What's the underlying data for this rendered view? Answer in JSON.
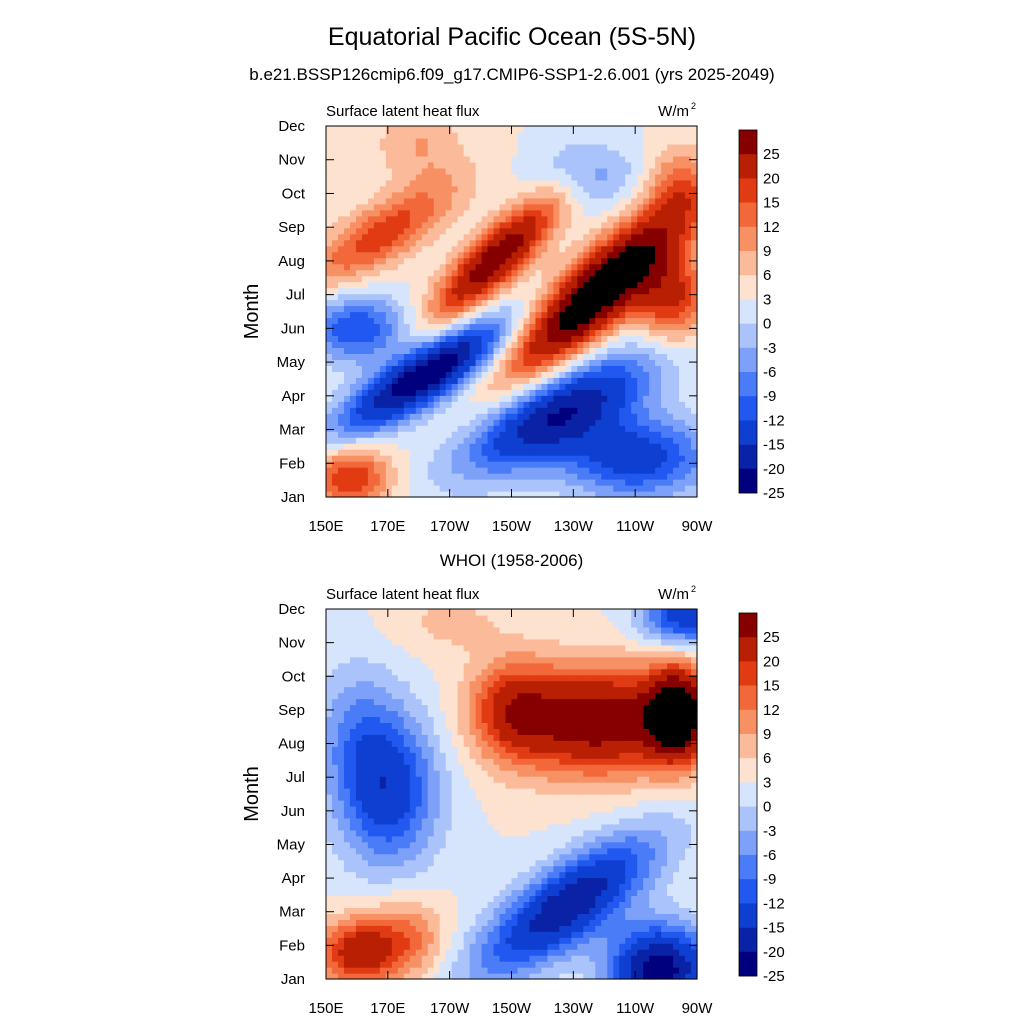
{
  "figure": {
    "title": "Equatorial Pacific Ocean (5S-5N)",
    "subtitle": "b.e21.BSSP126cmip6.f09_g17.CMIP6-SSP1-2.6.001 (yrs 2025-2049)"
  },
  "chart_data": [
    {
      "type": "heatmap",
      "panel_title": "",
      "left_string": "Surface latent heat flux",
      "right_string": "W/m",
      "right_string_sup": "2",
      "ylabel": "Month",
      "x_ticks": [
        "150E",
        "170E",
        "170W",
        "150W",
        "130W",
        "110W",
        "90W"
      ],
      "y_ticks": [
        "Jan",
        "Feb",
        "Mar",
        "Apr",
        "May",
        "Jun",
        "Jul",
        "Aug",
        "Sep",
        "Oct",
        "Nov",
        "Dec"
      ],
      "xlim": [
        150,
        270
      ],
      "levels": [
        -25,
        -20,
        -15,
        -12,
        -9,
        -6,
        -3,
        0,
        3,
        6,
        9,
        12,
        15,
        20,
        25
      ],
      "colorbar_labels": [
        "25",
        "20",
        "15",
        "12",
        "9",
        "6",
        "3",
        "0",
        "-3",
        "-6",
        "-9",
        "-12",
        "-15",
        "-20",
        "-25"
      ],
      "colors": [
        "#00007f",
        "#0a22a6",
        "#0f3fd1",
        "#2159f0",
        "#4a7cf7",
        "#7da1f8",
        "#aac3fa",
        "#d6e4fc",
        "#fde2d0",
        "#fbbb9a",
        "#f79063",
        "#f2683a",
        "#e03b12",
        "#b81f03",
        "#860000"
      ],
      "field_features": [
        {
          "lon": 238,
          "month": 7.1,
          "value": 32,
          "sx": 28,
          "sy": 1.3,
          "tilt": 0.075
        },
        {
          "lon": 205,
          "month": 8.1,
          "value": 24,
          "sx": 20,
          "sy": 1.0,
          "tilt": 0.075
        },
        {
          "lon": 168,
          "month": 8.8,
          "value": 14,
          "sx": 24,
          "sy": 1.0,
          "tilt": 0.05
        },
        {
          "lon": 262,
          "month": 6.9,
          "value": 16,
          "sx": 12,
          "sy": 1.3,
          "tilt": 0.0
        },
        {
          "lon": 182,
          "month": 4.6,
          "value": -30,
          "sx": 26,
          "sy": 0.9,
          "tilt": 0.05
        },
        {
          "lon": 225,
          "month": 3.5,
          "value": -24,
          "sx": 30,
          "sy": 1.2,
          "tilt": 0.04
        },
        {
          "lon": 250,
          "month": 2.2,
          "value": -18,
          "sx": 24,
          "sy": 1.2,
          "tilt": 0.0
        },
        {
          "lon": 160,
          "month": 6.0,
          "value": -15,
          "sx": 16,
          "sy": 1.0,
          "tilt": 0.0
        },
        {
          "lon": 158,
          "month": 1.6,
          "value": 15,
          "sx": 13,
          "sy": 0.9,
          "tilt": 0.0
        },
        {
          "lon": 180,
          "month": 11.5,
          "value": 6,
          "sx": 14,
          "sy": 1.2,
          "tilt": 0.0
        },
        {
          "lon": 235,
          "month": 10.6,
          "value": -8,
          "sx": 16,
          "sy": 1.0,
          "tilt": 0.0
        },
        {
          "lon": 263,
          "month": 10.3,
          "value": 8,
          "sx": 10,
          "sy": 1.2,
          "tilt": 0.0
        }
      ]
    },
    {
      "type": "heatmap",
      "panel_title": "WHOI (1958-2006)",
      "left_string": "Surface latent heat flux",
      "right_string": "W/m",
      "right_string_sup": "2",
      "ylabel": "Month",
      "x_ticks": [
        "150E",
        "170E",
        "170W",
        "150W",
        "130W",
        "110W",
        "90W"
      ],
      "y_ticks": [
        "Jan",
        "Feb",
        "Mar",
        "Apr",
        "May",
        "Jun",
        "Jul",
        "Aug",
        "Sep",
        "Oct",
        "Nov",
        "Dec"
      ],
      "xlim": [
        150,
        270
      ],
      "levels": [
        -25,
        -20,
        -15,
        -12,
        -9,
        -6,
        -3,
        0,
        3,
        6,
        9,
        12,
        15,
        20,
        25
      ],
      "colorbar_labels": [
        "25",
        "20",
        "15",
        "12",
        "9",
        "6",
        "3",
        "0",
        "-3",
        "-6",
        "-9",
        "-12",
        "-15",
        "-20",
        "-25"
      ],
      "colors": [
        "#00007f",
        "#0a22a6",
        "#0f3fd1",
        "#2159f0",
        "#4a7cf7",
        "#7da1f8",
        "#aac3fa",
        "#d6e4fc",
        "#fde2d0",
        "#fbbb9a",
        "#f79063",
        "#f2683a",
        "#e03b12",
        "#b81f03",
        "#860000"
      ],
      "field_features": [
        {
          "lon": 238,
          "month": 8.7,
          "value": 24,
          "sx": 26,
          "sy": 1.6,
          "tilt": 0.0
        },
        {
          "lon": 264,
          "month": 8.9,
          "value": 28,
          "sx": 10,
          "sy": 1.4,
          "tilt": 0.0
        },
        {
          "lon": 210,
          "month": 9.0,
          "value": 14,
          "sx": 14,
          "sy": 1.5,
          "tilt": 0.0
        },
        {
          "lon": 170,
          "month": 6.6,
          "value": -18,
          "sx": 16,
          "sy": 2.2,
          "tilt": 0.0
        },
        {
          "lon": 160,
          "month": 8.5,
          "value": -7,
          "sx": 14,
          "sy": 2.0,
          "tilt": 0.0
        },
        {
          "lon": 228,
          "month": 3.2,
          "value": -24,
          "sx": 28,
          "sy": 1.3,
          "tilt": 0.055
        },
        {
          "lon": 258,
          "month": 1.3,
          "value": -28,
          "sx": 16,
          "sy": 1.3,
          "tilt": 0.0
        },
        {
          "lon": 160,
          "month": 1.8,
          "value": 18,
          "sx": 12,
          "sy": 1.0,
          "tilt": 0.0
        },
        {
          "lon": 176,
          "month": 2.2,
          "value": 10,
          "sx": 12,
          "sy": 1.2,
          "tilt": 0.0
        },
        {
          "lon": 266,
          "month": 11.8,
          "value": -18,
          "sx": 14,
          "sy": 0.9,
          "tilt": 0.0
        },
        {
          "lon": 190,
          "month": 11.6,
          "value": 4,
          "sx": 18,
          "sy": 0.9,
          "tilt": 0.0
        }
      ]
    }
  ]
}
